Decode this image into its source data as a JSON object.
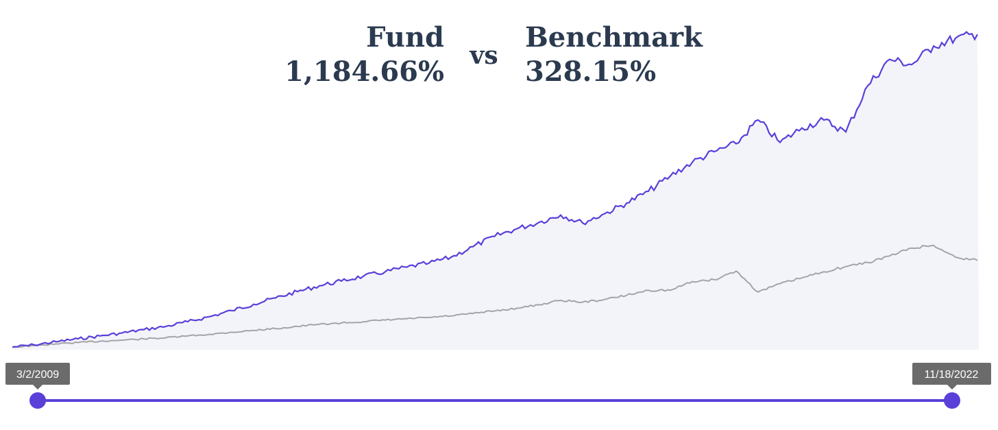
{
  "header": {
    "fund_label": "Fund",
    "fund_return": "1,184.66%",
    "vs_label": "vs",
    "benchmark_label": "Benchmark",
    "benchmark_return": "328.15%"
  },
  "slider": {
    "start_label": "3/2/2009",
    "end_label": "11/18/2022",
    "start_position": 0,
    "end_position": 1
  },
  "colors": {
    "fund": "#5a3fd9",
    "benchmark": "#a4a4a8",
    "area_fill": "#f3f4f9",
    "slider": "#5a3fd9",
    "tooltip_bg": "#6b6b6b",
    "headline": "#2b3a4f"
  },
  "chart_data": {
    "type": "line",
    "x_range": [
      "2009-03-02",
      "2022-11-18"
    ],
    "series": [
      {
        "name": "Fund",
        "final_return_pct": 1184.66,
        "values": [
          0,
          8,
          20,
          31,
          42,
          53,
          66,
          78,
          96,
          115,
          138,
          162,
          186,
          210,
          232,
          250,
          268,
          285,
          303,
          318,
          340,
          380,
          420,
          448,
          472,
          500,
          470,
          505,
          545,
          590,
          648,
          700,
          740,
          770,
          860,
          775,
          830,
          860,
          815,
          990,
          1090,
          1070,
          1140,
          1170,
          1184.66
        ]
      },
      {
        "name": "Benchmark",
        "final_return_pct": 328.15,
        "values": [
          0,
          5,
          12,
          17,
          22,
          26,
          31,
          35,
          42,
          48,
          56,
          63,
          70,
          78,
          86,
          91,
          96,
          102,
          107,
          112,
          118,
          127,
          137,
          147,
          160,
          177,
          170,
          180,
          196,
          215,
          215,
          248,
          255,
          288,
          208,
          240,
          262,
          285,
          305,
          320,
          345,
          375,
          385,
          340,
          328.15
        ]
      }
    ],
    "y_unit": "cumulative return %",
    "grid": false,
    "legend": "none"
  }
}
